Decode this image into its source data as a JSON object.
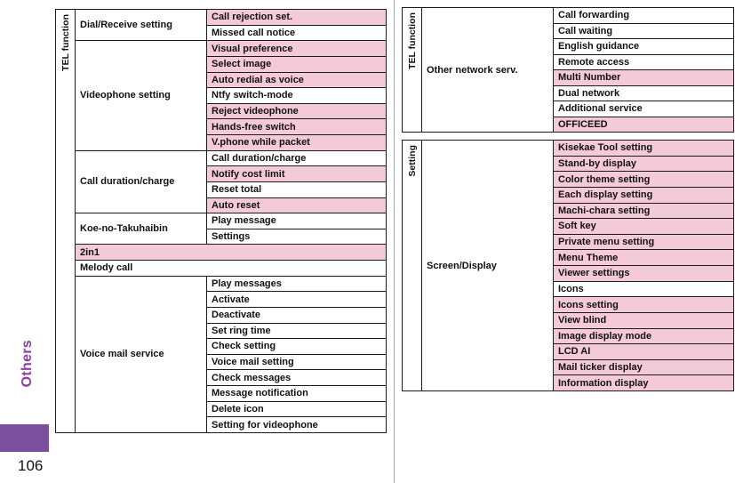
{
  "colors": {
    "highlight-pink": "#f4c9d8",
    "accent-purple": "#8b3f9e",
    "tab-purple": "#7a4f9b"
  },
  "page": {
    "sidebar_label": "Others",
    "page_number": "106"
  },
  "left_table": {
    "header": "TEL function",
    "groups": [
      {
        "category": "Dial/Receive setting",
        "items": [
          "Call rejection set.",
          "Missed call notice"
        ]
      },
      {
        "category": "Videophone setting",
        "items": [
          "Visual preference",
          "Select image",
          "Auto redial as voice",
          "Ntfy switch-mode",
          "Reject videophone",
          "Hands-free switch",
          "V.phone while packet"
        ]
      },
      {
        "category": "Call duration/charge",
        "items": [
          "Call duration/charge",
          "Notify cost limit",
          "Reset total",
          "Auto reset"
        ]
      },
      {
        "category": "Koe-no-Takuhaibin",
        "items": [
          "Play message",
          "Settings"
        ]
      },
      {
        "category": "2in1",
        "items": []
      },
      {
        "category": "Melody call",
        "items": []
      },
      {
        "category": "Voice mail service",
        "items": [
          "Play messages",
          "Activate",
          "Deactivate",
          "Set ring time",
          "Check setting",
          "Voice mail setting",
          "Check messages",
          "Message notification",
          "Delete icon",
          "Setting for videophone"
        ]
      }
    ]
  },
  "right_top_table": {
    "header": "TEL function",
    "groups": [
      {
        "category": "Other network serv.",
        "items": [
          "Call forwarding",
          "Call waiting",
          "English guidance",
          "Remote access",
          "Multi Number",
          "Dual network",
          "Additional service",
          "OFFICEED"
        ]
      }
    ]
  },
  "right_bottom_table": {
    "header": "Setting",
    "groups": [
      {
        "category": "Screen/Display",
        "items": [
          "Kisekae Tool setting",
          "Stand-by display",
          "Color theme setting",
          "Each display setting",
          "Machi-chara setting",
          "Soft key",
          "Private menu setting",
          "Menu Theme",
          "Viewer settings",
          "Icons",
          "Icons setting",
          "View blind",
          "Image display mode",
          "LCD AI",
          "Mail ticker display",
          "Information display"
        ]
      }
    ]
  }
}
